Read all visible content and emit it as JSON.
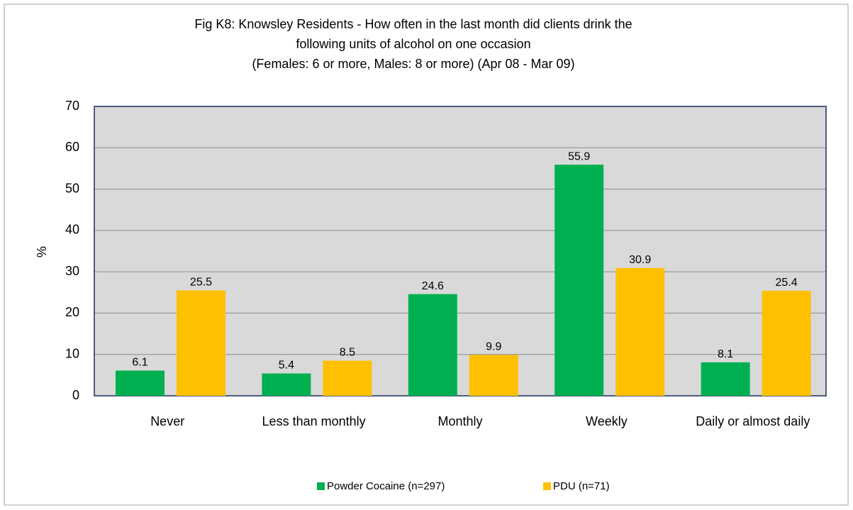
{
  "chart_data": {
    "type": "bar",
    "title": [
      "Fig K8: Knowsley Residents - How often in the last month did clients drink the",
      "following units of alcohol on one occasion",
      "(Females: 6 or more, Males: 8 or more) (Apr  08 - Mar  09)"
    ],
    "y_label": "%",
    "categories": [
      "Never",
      "Less than monthly",
      "Monthly",
      "Weekly",
      "Daily or almost daily"
    ],
    "series": [
      {
        "name": "Powder Cocaine (n=297)",
        "color": "#00b050",
        "values": [
          6.1,
          5.4,
          24.6,
          55.9,
          8.1
        ]
      },
      {
        "name": "PDU (n=71)",
        "color": "#ffc000",
        "values": [
          25.5,
          8.5,
          9.9,
          30.9,
          25.4
        ]
      }
    ],
    "ylim": [
      0,
      70
    ],
    "yticks": [
      0,
      10,
      20,
      30,
      40,
      50,
      60,
      70
    ],
    "grid": true,
    "legend": "bottom"
  }
}
